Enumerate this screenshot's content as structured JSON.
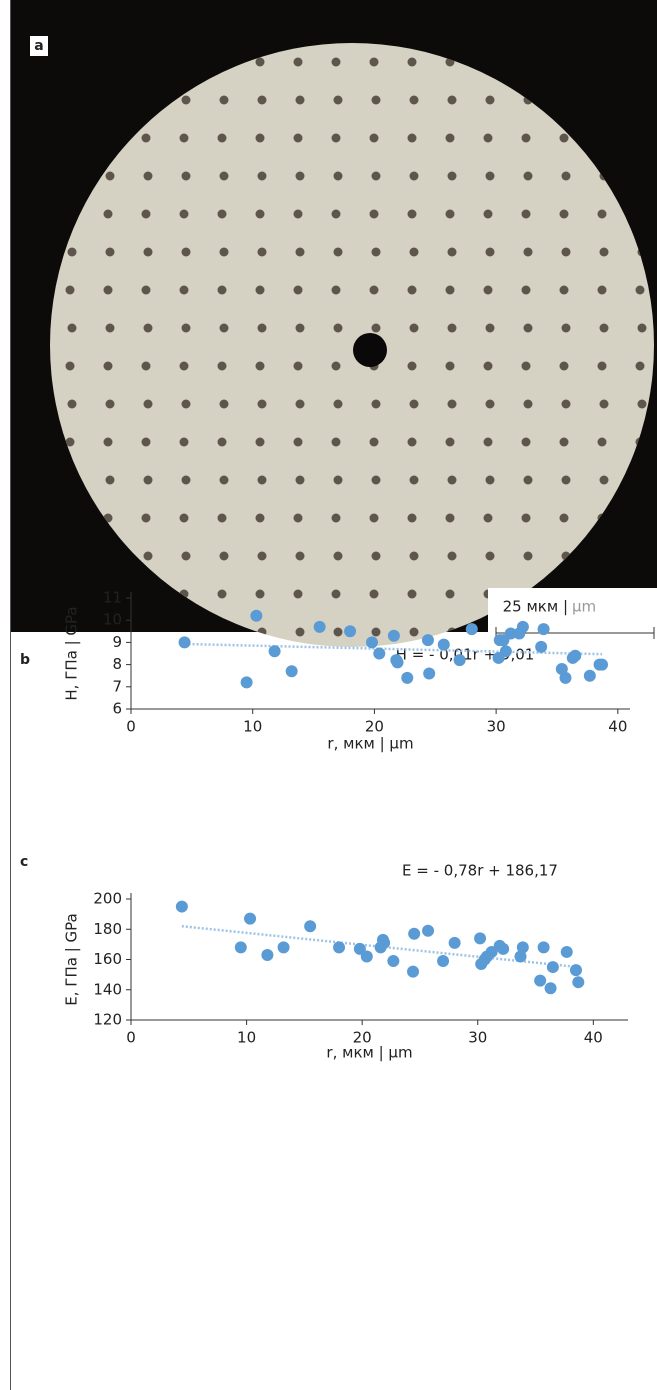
{
  "figure": {
    "panel_a": "a",
    "scale_bar": {
      "label": "25 мкм |",
      "unit": "µm"
    }
  },
  "chart_data": [
    {
      "type": "scatter",
      "panel": "b",
      "y_label": "H, ГПа | GPa",
      "x_label": "r, мкм | µm",
      "annotation": "H = - 0,01r + 9,01",
      "color": "#5b9bd5",
      "trend_color": "#9dc3e6",
      "xlim": [
        0,
        41
      ],
      "ylim": [
        6,
        11
      ],
      "xticks": [
        0,
        10,
        20,
        30,
        40
      ],
      "yticks": [
        6,
        7,
        8,
        9,
        10,
        11
      ],
      "x": [
        4.4,
        9.5,
        10.3,
        11.8,
        13.2,
        15.5,
        18,
        19.8,
        20.4,
        21.6,
        21.8,
        21.9,
        22.7,
        24.4,
        24.5,
        25.7,
        27,
        28,
        30.2,
        30.3,
        30.6,
        30.8,
        31.2,
        31.9,
        32.2,
        33.7,
        33.9,
        35.4,
        35.7,
        36.3,
        36.5,
        37.7,
        38.5,
        38.7
      ],
      "values": [
        9.0,
        7.2,
        10.2,
        8.6,
        7.7,
        9.7,
        9.5,
        9.0,
        8.5,
        9.3,
        8.2,
        8.1,
        7.4,
        9.1,
        7.6,
        8.9,
        8.2,
        9.6,
        8.3,
        9.1,
        9.1,
        8.6,
        9.4,
        9.4,
        9.7,
        8.8,
        9.6,
        7.8,
        7.4,
        8.3,
        8.4,
        7.5,
        8.0,
        8.0
      ],
      "trend": {
        "x": [
          4.4,
          38.7
        ],
        "values": [
          8.93,
          8.47
        ]
      }
    },
    {
      "type": "scatter",
      "panel": "c",
      "y_label": "E, ГПа | GPa",
      "x_label": "r, мкм | µm",
      "annotation": "E = - 0,78r + 186,17",
      "color": "#5b9bd5",
      "trend_color": "#9dc3e6",
      "xlim": [
        0,
        43
      ],
      "ylim": [
        120,
        200
      ],
      "xticks": [
        0,
        10,
        20,
        30,
        40
      ],
      "yticks": [
        120,
        140,
        160,
        180,
        200
      ],
      "x": [
        4.4,
        9.5,
        10.3,
        11.8,
        13.2,
        15.5,
        18,
        19.8,
        20.4,
        21.6,
        21.8,
        21.9,
        22.7,
        24.4,
        24.5,
        25.7,
        27,
        28,
        30.2,
        30.3,
        30.6,
        30.8,
        31.2,
        31.9,
        32.2,
        33.7,
        33.9,
        35.4,
        35.7,
        36.3,
        36.5,
        37.7,
        38.5,
        38.7
      ],
      "values": [
        195,
        168,
        187,
        163,
        168,
        182,
        168,
        167,
        162,
        168,
        173,
        171,
        159,
        152,
        177,
        179,
        159,
        171,
        174,
        157,
        160,
        162,
        165,
        169,
        167,
        162,
        168,
        146,
        168,
        141,
        155,
        165,
        153,
        145
      ],
      "trend": {
        "x": [
          4.4,
          38.7
        ],
        "values": [
          182,
          155
        ]
      }
    }
  ]
}
